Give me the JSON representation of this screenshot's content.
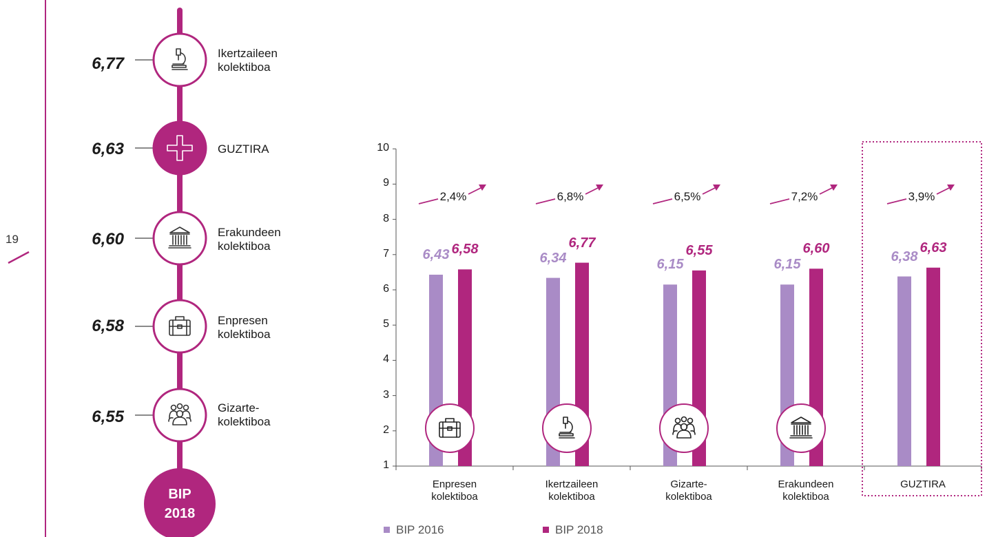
{
  "page": {
    "number": "19"
  },
  "timeline": {
    "items": [
      {
        "value": "6,77",
        "label": "Ikertzaileen\nkolektiboa",
        "icon": "microscope-icon"
      },
      {
        "value": "6,63",
        "label": "GUZTIRA",
        "icon": "plus-icon"
      },
      {
        "value": "6,60",
        "label": "Erakundeen\nkolektiboa",
        "icon": "institution-icon"
      },
      {
        "value": "6,58",
        "label": "Enpresen\nkolektiboa",
        "icon": "briefcase-icon"
      },
      {
        "value": "6,55",
        "label": "Gizarte-\nkolektiboa",
        "icon": "people-icon"
      }
    ],
    "badge_line1": "BIP",
    "badge_line2": "2018"
  },
  "chart_data": {
    "type": "bar",
    "categories": [
      "Enpresen\nkolektiboa",
      "Ikertzaileen\nkolektiboa",
      "Gizarte-\nkolektiboa",
      "Erakundeen\nkolektiboa",
      "GUZTIRA"
    ],
    "series": [
      {
        "name": "BIP 2016",
        "values": [
          6.43,
          6.34,
          6.15,
          6.15,
          6.38
        ],
        "labels": [
          "6,43",
          "6,34",
          "6,15",
          "6,15",
          "6,38"
        ],
        "color": "#a98bc6"
      },
      {
        "name": "BIP 2018",
        "values": [
          6.58,
          6.77,
          6.55,
          6.6,
          6.63
        ],
        "labels": [
          "6,58",
          "6,77",
          "6,55",
          "6,60",
          "6,63"
        ],
        "color": "#b0267e"
      }
    ],
    "growth_labels": [
      "2,4%",
      "6,8%",
      "6,5%",
      "7,2%",
      "3,9%"
    ],
    "category_icons": [
      "briefcase-icon",
      "microscope-icon",
      "people-icon",
      "institution-icon",
      ""
    ],
    "highlighted_category": "GUZTIRA",
    "yticks": [
      "1",
      "2",
      "3",
      "4",
      "5",
      "6",
      "7",
      "8",
      "9",
      "10"
    ],
    "ylim": [
      1,
      10
    ],
    "legend_position": "bottom-left",
    "grid": false
  },
  "colors": {
    "accent": "#b0267e",
    "light": "#a98bc6"
  }
}
